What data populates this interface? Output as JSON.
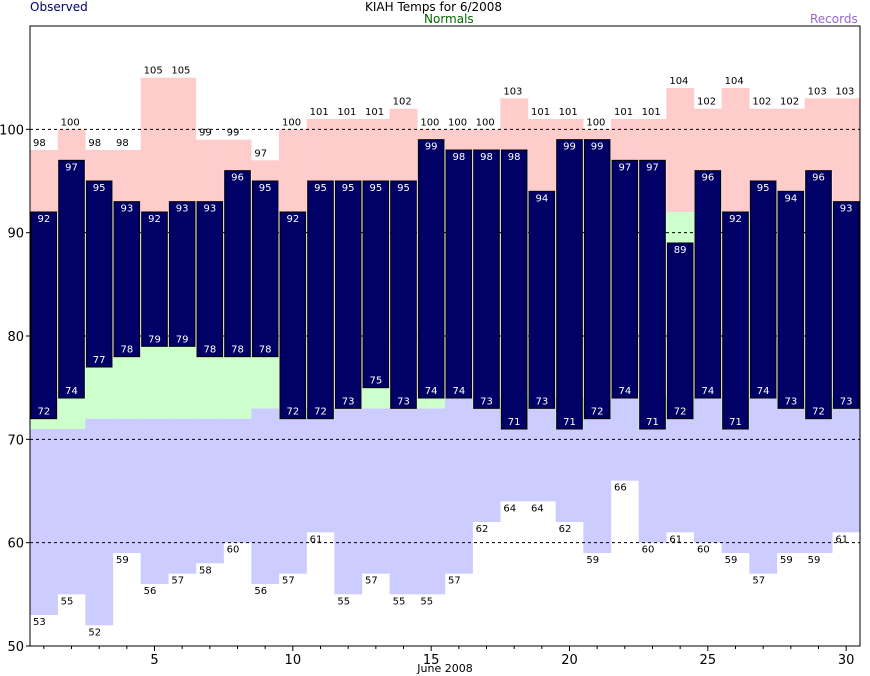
{
  "header": {
    "observed_label": "Observed",
    "title": "KIAH Temps for 6/2008",
    "normals_label": "Normals",
    "records_label": "Records"
  },
  "colors": {
    "observed": "#000066",
    "normal_band": "#ccffcc",
    "record_high": "#ffcccc",
    "record_low": "#ccccff",
    "normals_text": "#006600",
    "records_text": "#9966cc",
    "observed_text": "#000066",
    "gridline": "#000000"
  },
  "chart_data": {
    "type": "bar",
    "title": "KIAH Temps for 6/2008",
    "xlabel": "June 2008",
    "ylabel": "",
    "x": [
      1,
      2,
      3,
      4,
      5,
      6,
      7,
      8,
      9,
      10,
      11,
      12,
      13,
      14,
      15,
      16,
      17,
      18,
      19,
      20,
      21,
      22,
      23,
      24,
      25,
      26,
      27,
      28,
      29,
      30
    ],
    "x_ticks": [
      5,
      10,
      15,
      20,
      25,
      30
    ],
    "y_ticks": [
      50,
      60,
      70,
      80,
      90,
      100
    ],
    "xlim": [
      0.5,
      30.5
    ],
    "ylim": [
      50,
      110
    ],
    "grid": "dashed horizontal at 60, 70, 80, 90, 100",
    "series": [
      {
        "name": "Records",
        "key": "record_high",
        "values": [
          98,
          100,
          98,
          98,
          105,
          105,
          99,
          99,
          97,
          100,
          101,
          101,
          101,
          102,
          100,
          100,
          100,
          103,
          101,
          101,
          100,
          101,
          101,
          104,
          102,
          104,
          102,
          102,
          103,
          103
        ]
      },
      {
        "name": "Records",
        "key": "record_low",
        "values": [
          53,
          55,
          52,
          59,
          56,
          57,
          58,
          60,
          56,
          57,
          61,
          55,
          57,
          55,
          55,
          57,
          62,
          64,
          64,
          62,
          59,
          66,
          60,
          61,
          60,
          59,
          57,
          59,
          59,
          61
        ]
      },
      {
        "name": "Normals",
        "key": "normal_high",
        "values": [
          null,
          null,
          null,
          null,
          null,
          null,
          null,
          null,
          null,
          null,
          null,
          null,
          null,
          null,
          null,
          null,
          null,
          null,
          null,
          null,
          null,
          null,
          null,
          92,
          null,
          null,
          null,
          null,
          null,
          null
        ]
      },
      {
        "name": "Normals",
        "key": "normal_low",
        "values": [
          71,
          71,
          72,
          72,
          72,
          72,
          72,
          72,
          73,
          73,
          73,
          73,
          73,
          73,
          73,
          74,
          74,
          74,
          74,
          74,
          74,
          74,
          74,
          74,
          74,
          74,
          74,
          74,
          74,
          74
        ]
      },
      {
        "name": "Observed",
        "key": "observed_high",
        "values": [
          92,
          97,
          95,
          93,
          92,
          93,
          93,
          96,
          95,
          92,
          95,
          95,
          95,
          95,
          99,
          98,
          98,
          98,
          94,
          99,
          99,
          97,
          97,
          89,
          96,
          92,
          95,
          94,
          96,
          93
        ]
      },
      {
        "name": "Observed",
        "key": "observed_low",
        "values": [
          72,
          74,
          77,
          78,
          79,
          79,
          78,
          78,
          78,
          72,
          72,
          73,
          75,
          73,
          74,
          74,
          73,
          71,
          73,
          71,
          72,
          74,
          71,
          72,
          74,
          71,
          74,
          73,
          72,
          73
        ]
      }
    ]
  }
}
